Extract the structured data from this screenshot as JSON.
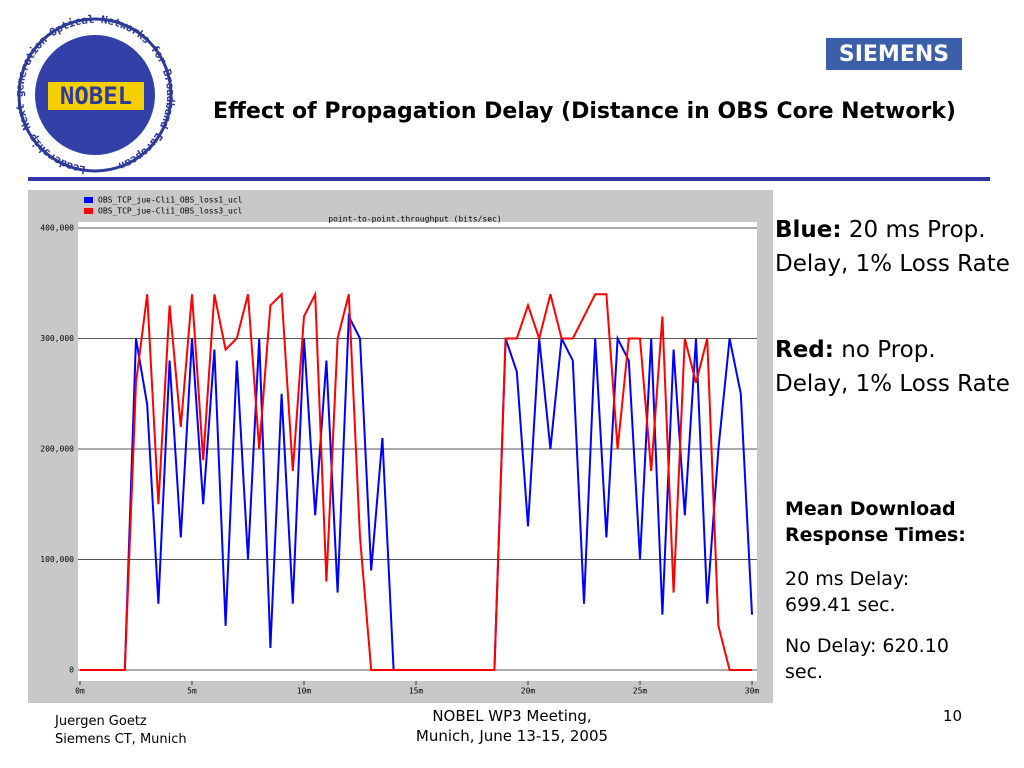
{
  "slide": {
    "logo": {
      "name": "NOBEL",
      "ring": "Leadership Next generation Optical Networks for Broadband European"
    },
    "brand": "SIEMENS",
    "title": "Effect of Propagation Delay (Distance in OBS Core Network)",
    "notes": [
      {
        "label": "Blue:",
        "text": "20 ms Prop. Delay, 1% Loss Rate"
      },
      {
        "label": "Red:",
        "text": "no Prop. Delay, 1% Loss Rate"
      }
    ],
    "summary": {
      "heading": "Mean Download Response Times:",
      "items": [
        "20 ms Delay: 699.41 sec.",
        "No Delay: 620.10 sec."
      ]
    },
    "footer": {
      "author": "Juergen Goetz",
      "affiliation": "Siemens CT, Munich",
      "event": "NOBEL WP3 Meeting,",
      "date": "Munich, June 13-15, 2005",
      "page": 10
    }
  },
  "chart_data": {
    "type": "line",
    "title": "point-to-point.throughput (bits/sec)",
    "x": [
      0,
      0.5,
      1,
      1.5,
      2,
      2.5,
      3,
      3.5,
      4,
      4.5,
      5,
      5.5,
      6,
      6.5,
      7,
      7.5,
      8,
      8.5,
      9,
      9.5,
      10,
      10.5,
      11,
      11.5,
      12,
      12.5,
      13,
      13.5,
      14,
      14.5,
      15,
      15.5,
      16,
      16.5,
      17,
      17.5,
      18,
      18.5,
      19,
      19.5,
      20,
      20.5,
      21,
      21.5,
      22,
      22.5,
      23,
      23.5,
      24,
      24.5,
      25,
      25.5,
      26,
      26.5,
      27,
      27.5,
      28,
      28.5,
      29,
      29.5,
      30
    ],
    "series": [
      {
        "name": "OBS_TCP_jue-Cli1_OBS_loss1_ucl",
        "color": "#0000ff",
        "values": [
          0,
          0,
          0,
          0,
          0,
          300000,
          240000,
          60000,
          280000,
          120000,
          300000,
          150000,
          290000,
          40000,
          280000,
          100000,
          300000,
          20000,
          250000,
          60000,
          300000,
          140000,
          280000,
          70000,
          320000,
          300000,
          90000,
          210000,
          0,
          0,
          0,
          0,
          0,
          0,
          0,
          0,
          0,
          0,
          300000,
          270000,
          130000,
          300000,
          200000,
          300000,
          280000,
          60000,
          300000,
          120000,
          300000,
          280000,
          100000,
          300000,
          50000,
          290000,
          140000,
          300000,
          60000,
          200000,
          300000,
          250000,
          50000
        ]
      },
      {
        "name": "OBS_TCP_jue-Cli1_OBS_loss3_ucl",
        "color": "#ff0000",
        "values": [
          0,
          0,
          0,
          0,
          0,
          260000,
          340000,
          150000,
          330000,
          220000,
          340000,
          190000,
          340000,
          290000,
          300000,
          340000,
          200000,
          330000,
          340000,
          180000,
          320000,
          340000,
          80000,
          300000,
          340000,
          120000,
          0,
          0,
          0,
          0,
          0,
          0,
          0,
          0,
          0,
          0,
          0,
          0,
          300000,
          300000,
          330000,
          300000,
          340000,
          300000,
          300000,
          320000,
          340000,
          340000,
          200000,
          300000,
          300000,
          180000,
          320000,
          70000,
          300000,
          260000,
          300000,
          40000,
          0,
          0,
          0
        ]
      }
    ],
    "xlim": [
      0,
      30.2
    ],
    "xticks": [
      {
        "value": 0,
        "label": "0m"
      },
      {
        "value": 5,
        "label": "5m"
      },
      {
        "value": 10,
        "label": "10m"
      },
      {
        "value": 15,
        "label": "15m"
      },
      {
        "value": 20,
        "label": "20m"
      },
      {
        "value": 25,
        "label": "25m"
      },
      {
        "value": 30,
        "label": "30m"
      }
    ],
    "ylim": [
      -10000,
      410000
    ],
    "yticks": [
      0,
      {
        "value": 100000,
        "label": "100,000"
      },
      {
        "value": 200000,
        "label": "200,000"
      },
      {
        "value": 300000,
        "label": "300,000"
      },
      {
        "value": 400000,
        "label": "400,000"
      }
    ],
    "grid": true
  }
}
